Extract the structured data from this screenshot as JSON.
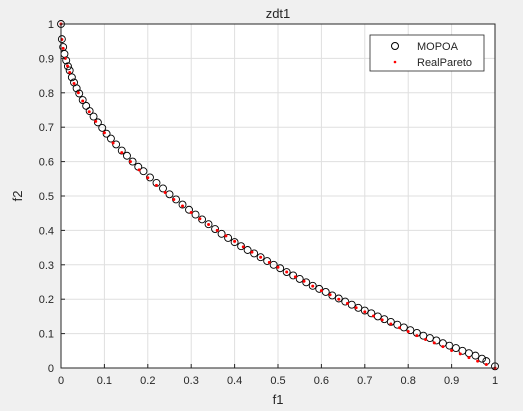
{
  "chart_data": {
    "type": "scatter",
    "title": "zdt1",
    "xlabel": "f1",
    "ylabel": "f2",
    "xlim": [
      0,
      1
    ],
    "ylim": [
      0,
      1
    ],
    "xticks": [
      "0",
      "0.1",
      "0.2",
      "0.3",
      "0.4",
      "0.5",
      "0.6",
      "0.7",
      "0.8",
      "0.9",
      "1"
    ],
    "yticks": [
      "0",
      "0.1",
      "0.2",
      "0.3",
      "0.4",
      "0.5",
      "0.6",
      "0.7",
      "0.8",
      "0.9",
      "1"
    ],
    "grid": true,
    "legend_position": "top-right",
    "curve": "f2 = 1 - sqrt(f1)",
    "series": [
      {
        "name": "MOPOA",
        "marker": "open-circle",
        "color": "#000000",
        "x": [
          0,
          0.002,
          0.005,
          0.008,
          0.012,
          0.016,
          0.02,
          0.025,
          0.03,
          0.036,
          0.042,
          0.05,
          0.058,
          0.066,
          0.075,
          0.085,
          0.095,
          0.105,
          0.115,
          0.127,
          0.14,
          0.152,
          0.165,
          0.178,
          0.19,
          0.205,
          0.22,
          0.235,
          0.25,
          0.265,
          0.28,
          0.295,
          0.31,
          0.325,
          0.34,
          0.355,
          0.37,
          0.385,
          0.4,
          0.415,
          0.43,
          0.445,
          0.46,
          0.475,
          0.49,
          0.505,
          0.52,
          0.535,
          0.55,
          0.565,
          0.58,
          0.595,
          0.61,
          0.625,
          0.64,
          0.655,
          0.67,
          0.685,
          0.7,
          0.715,
          0.73,
          0.745,
          0.76,
          0.775,
          0.79,
          0.805,
          0.82,
          0.835,
          0.85,
          0.865,
          0.88,
          0.895,
          0.91,
          0.925,
          0.94,
          0.955,
          0.97,
          0.98,
          1.0
        ],
        "y": [
          1.0,
          0.956,
          0.933,
          0.913,
          0.894,
          0.877,
          0.865,
          0.845,
          0.83,
          0.813,
          0.798,
          0.779,
          0.762,
          0.747,
          0.731,
          0.714,
          0.698,
          0.681,
          0.667,
          0.65,
          0.632,
          0.617,
          0.6,
          0.585,
          0.572,
          0.554,
          0.538,
          0.522,
          0.505,
          0.49,
          0.475,
          0.46,
          0.446,
          0.432,
          0.418,
          0.404,
          0.39,
          0.378,
          0.366,
          0.354,
          0.343,
          0.333,
          0.322,
          0.311,
          0.3,
          0.29,
          0.279,
          0.269,
          0.259,
          0.249,
          0.239,
          0.23,
          0.221,
          0.211,
          0.202,
          0.193,
          0.184,
          0.175,
          0.167,
          0.159,
          0.15,
          0.142,
          0.134,
          0.126,
          0.118,
          0.11,
          0.102,
          0.094,
          0.087,
          0.08,
          0.072,
          0.065,
          0.058,
          0.05,
          0.043,
          0.036,
          0.027,
          0.02,
          0.005
        ]
      },
      {
        "name": "RealPareto",
        "marker": "dot",
        "color": "#ff0000",
        "x": [
          0,
          0.002,
          0.005,
          0.01,
          0.015,
          0.02,
          0.03,
          0.04,
          0.05,
          0.065,
          0.08,
          0.1,
          0.12,
          0.14,
          0.16,
          0.18,
          0.2,
          0.22,
          0.24,
          0.26,
          0.28,
          0.3,
          0.32,
          0.34,
          0.36,
          0.38,
          0.4,
          0.42,
          0.44,
          0.46,
          0.48,
          0.5,
          0.52,
          0.54,
          0.56,
          0.58,
          0.6,
          0.62,
          0.64,
          0.66,
          0.68,
          0.7,
          0.72,
          0.74,
          0.76,
          0.78,
          0.8,
          0.82,
          0.84,
          0.86,
          0.88,
          0.9,
          0.92,
          0.94,
          0.96,
          0.98,
          1.0
        ],
        "y": [
          1.0,
          0.955,
          0.929,
          0.9,
          0.878,
          0.859,
          0.827,
          0.8,
          0.776,
          0.745,
          0.717,
          0.684,
          0.654,
          0.626,
          0.6,
          0.576,
          0.553,
          0.531,
          0.51,
          0.49,
          0.471,
          0.452,
          0.434,
          0.417,
          0.4,
          0.384,
          0.368,
          0.352,
          0.337,
          0.322,
          0.307,
          0.293,
          0.279,
          0.265,
          0.252,
          0.238,
          0.225,
          0.213,
          0.2,
          0.188,
          0.175,
          0.163,
          0.151,
          0.14,
          0.128,
          0.117,
          0.106,
          0.094,
          0.083,
          0.073,
          0.062,
          0.051,
          0.041,
          0.03,
          0.02,
          0.01,
          0.0
        ]
      }
    ]
  }
}
